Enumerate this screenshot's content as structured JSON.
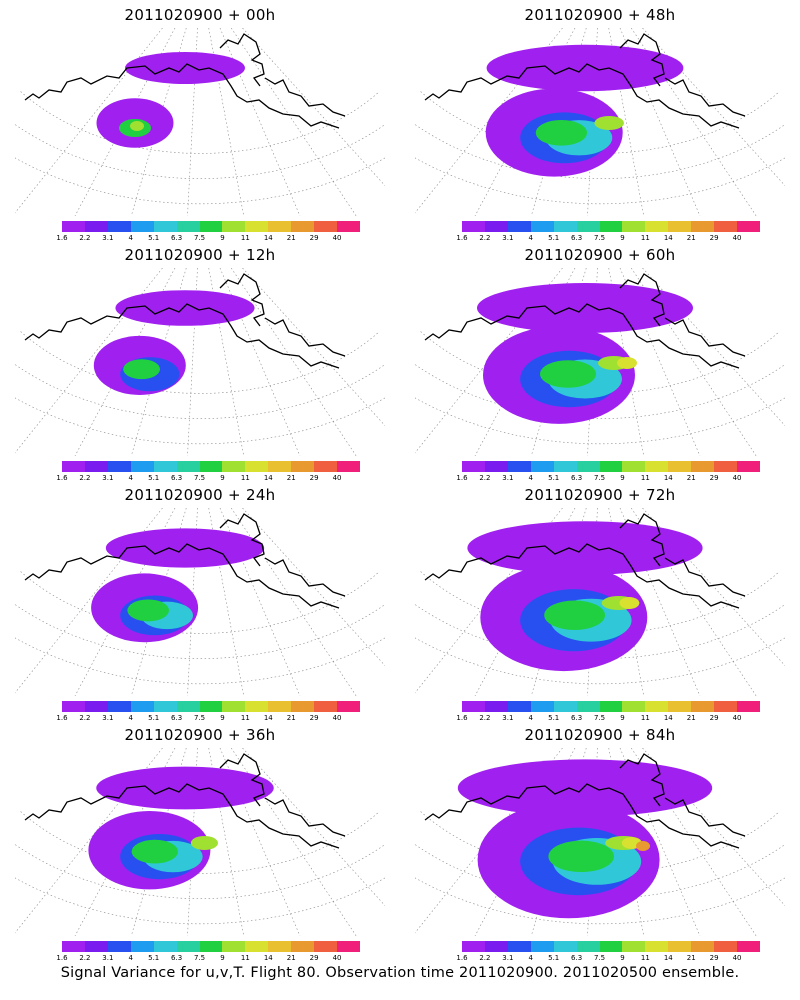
{
  "caption": "Signal Variance for u,v,T. Flight 80. Observation time 2011020900. 2011020500 ensemble.",
  "panels": [
    {
      "title": "2011020900 + 00h",
      "lead_hours": 0
    },
    {
      "title": "2011020900 + 48h",
      "lead_hours": 48
    },
    {
      "title": "2011020900 + 12h",
      "lead_hours": 12
    },
    {
      "title": "2011020900 + 60h",
      "lead_hours": 60
    },
    {
      "title": "2011020900 + 24h",
      "lead_hours": 24
    },
    {
      "title": "2011020900 + 72h",
      "lead_hours": 72
    },
    {
      "title": "2011020900 + 36h",
      "lead_hours": 36
    },
    {
      "title": "2011020900 + 84h",
      "lead_hours": 84
    }
  ],
  "colorbar": {
    "labels": [
      "1.6",
      "2.2",
      "3.1",
      "4",
      "5.1",
      "6.3",
      "7.5",
      "9",
      "11",
      "14",
      "21",
      "29",
      "40"
    ],
    "colors": [
      "#a020f0",
      "#7a1cf0",
      "#2850f0",
      "#1e9cf0",
      "#30c8d8",
      "#28d0a0",
      "#20d040",
      "#a0e030",
      "#d8e030",
      "#e8c030",
      "#e89a30",
      "#f06040",
      "#f0207a"
    ]
  }
}
